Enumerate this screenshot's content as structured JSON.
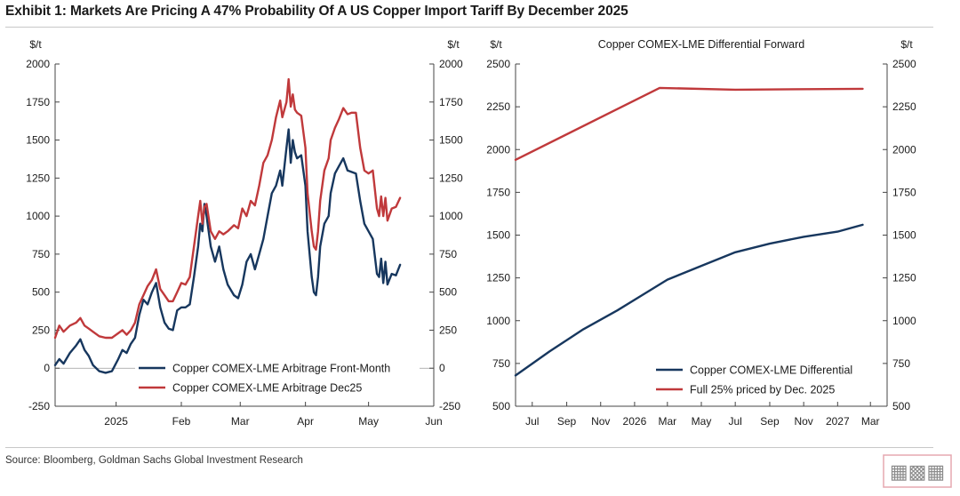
{
  "title": "Exhibit 1: Markets Are Pricing A 47% Probability Of A US Copper Import Tariff By December 2025",
  "source": "Source: Bloomberg, Goldman Sachs Global Investment Research",
  "watermark_text": "老刘编",
  "chart_data": [
    {
      "type": "line",
      "title": "",
      "ylabel_left": "$/t",
      "ylabel_right": "$/t",
      "ylim": [
        -250,
        2000
      ],
      "yticks": [
        -250,
        0,
        250,
        500,
        750,
        1000,
        1250,
        1500,
        1750,
        2000
      ],
      "x_range": [
        "2024-12-03",
        "2025-06-01"
      ],
      "xticks": [
        {
          "date": "2025-01-01",
          "label": "2025"
        },
        {
          "date": "2025-02-01",
          "label": "Feb"
        },
        {
          "date": "2025-03-01",
          "label": "Mar"
        },
        {
          "date": "2025-04-01",
          "label": "Apr"
        },
        {
          "date": "2025-05-01",
          "label": "May"
        },
        {
          "date": "2025-06-01",
          "label": "Jun"
        }
      ],
      "legend_position": "bottom-right",
      "series": [
        {
          "name": "Copper COMEX-LME Arbitrage Front-Month",
          "color": "#17375e",
          "points": [
            [
              "2024-12-03",
              20
            ],
            [
              "2024-12-05",
              60
            ],
            [
              "2024-12-07",
              30
            ],
            [
              "2024-12-10",
              100
            ],
            [
              "2024-12-13",
              150
            ],
            [
              "2024-12-15",
              190
            ],
            [
              "2024-12-17",
              120
            ],
            [
              "2024-12-19",
              80
            ],
            [
              "2024-12-21",
              20
            ],
            [
              "2024-12-24",
              -20
            ],
            [
              "2024-12-27",
              -30
            ],
            [
              "2024-12-30",
              -20
            ],
            [
              "2025-01-02",
              60
            ],
            [
              "2025-01-04",
              120
            ],
            [
              "2025-01-06",
              100
            ],
            [
              "2025-01-08",
              160
            ],
            [
              "2025-01-10",
              200
            ],
            [
              "2025-01-12",
              350
            ],
            [
              "2025-01-14",
              450
            ],
            [
              "2025-01-16",
              420
            ],
            [
              "2025-01-18",
              500
            ],
            [
              "2025-01-20",
              560
            ],
            [
              "2025-01-22",
              400
            ],
            [
              "2025-01-24",
              300
            ],
            [
              "2025-01-26",
              260
            ],
            [
              "2025-01-28",
              250
            ],
            [
              "2025-01-30",
              380
            ],
            [
              "2025-02-01",
              400
            ],
            [
              "2025-02-03",
              400
            ],
            [
              "2025-02-05",
              420
            ],
            [
              "2025-02-07",
              600
            ],
            [
              "2025-02-09",
              800
            ],
            [
              "2025-02-10",
              950
            ],
            [
              "2025-02-11",
              900
            ],
            [
              "2025-02-12",
              1080
            ],
            [
              "2025-02-13",
              1000
            ],
            [
              "2025-02-15",
              800
            ],
            [
              "2025-02-17",
              700
            ],
            [
              "2025-02-19",
              800
            ],
            [
              "2025-02-21",
              650
            ],
            [
              "2025-02-23",
              550
            ],
            [
              "2025-02-26",
              480
            ],
            [
              "2025-02-28",
              460
            ],
            [
              "2025-03-02",
              550
            ],
            [
              "2025-03-04",
              700
            ],
            [
              "2025-03-06",
              750
            ],
            [
              "2025-03-08",
              650
            ],
            [
              "2025-03-10",
              750
            ],
            [
              "2025-03-12",
              850
            ],
            [
              "2025-03-14",
              1000
            ],
            [
              "2025-03-16",
              1150
            ],
            [
              "2025-03-18",
              1200
            ],
            [
              "2025-03-20",
              1300
            ],
            [
              "2025-03-21",
              1200
            ],
            [
              "2025-03-23",
              1450
            ],
            [
              "2025-03-24",
              1570
            ],
            [
              "2025-03-25",
              1350
            ],
            [
              "2025-03-26",
              1500
            ],
            [
              "2025-03-27",
              1420
            ],
            [
              "2025-03-28",
              1380
            ],
            [
              "2025-03-30",
              1400
            ],
            [
              "2025-04-01",
              1200
            ],
            [
              "2025-04-02",
              900
            ],
            [
              "2025-04-04",
              600
            ],
            [
              "2025-04-05",
              500
            ],
            [
              "2025-04-06",
              480
            ],
            [
              "2025-04-07",
              600
            ],
            [
              "2025-04-08",
              800
            ],
            [
              "2025-04-10",
              950
            ],
            [
              "2025-04-12",
              1000
            ],
            [
              "2025-04-13",
              1150
            ],
            [
              "2025-04-15",
              1280
            ],
            [
              "2025-04-17",
              1330
            ],
            [
              "2025-04-19",
              1380
            ],
            [
              "2025-04-21",
              1300
            ],
            [
              "2025-04-23",
              1290
            ],
            [
              "2025-04-25",
              1280
            ],
            [
              "2025-04-27",
              1100
            ],
            [
              "2025-04-29",
              950
            ],
            [
              "2025-05-01",
              900
            ],
            [
              "2025-05-03",
              850
            ],
            [
              "2025-05-05",
              620
            ],
            [
              "2025-05-06",
              600
            ],
            [
              "2025-05-07",
              720
            ],
            [
              "2025-05-08",
              560
            ],
            [
              "2025-05-09",
              700
            ],
            [
              "2025-05-10",
              550
            ],
            [
              "2025-05-12",
              620
            ],
            [
              "2025-05-14",
              610
            ],
            [
              "2025-05-16",
              680
            ]
          ]
        },
        {
          "name": "Copper COMEX-LME Arbitrage Dec25",
          "color": "#c0393b",
          "points": [
            [
              "2024-12-03",
              200
            ],
            [
              "2024-12-05",
              280
            ],
            [
              "2024-12-07",
              240
            ],
            [
              "2024-12-10",
              280
            ],
            [
              "2024-12-13",
              300
            ],
            [
              "2024-12-15",
              330
            ],
            [
              "2024-12-17",
              280
            ],
            [
              "2024-12-19",
              260
            ],
            [
              "2024-12-21",
              240
            ],
            [
              "2024-12-24",
              210
            ],
            [
              "2024-12-27",
              200
            ],
            [
              "2024-12-30",
              200
            ],
            [
              "2025-01-02",
              230
            ],
            [
              "2025-01-04",
              250
            ],
            [
              "2025-01-06",
              220
            ],
            [
              "2025-01-08",
              250
            ],
            [
              "2025-01-10",
              300
            ],
            [
              "2025-01-12",
              420
            ],
            [
              "2025-01-14",
              480
            ],
            [
              "2025-01-16",
              540
            ],
            [
              "2025-01-18",
              580
            ],
            [
              "2025-01-20",
              650
            ],
            [
              "2025-01-22",
              520
            ],
            [
              "2025-01-24",
              480
            ],
            [
              "2025-01-26",
              440
            ],
            [
              "2025-01-28",
              440
            ],
            [
              "2025-01-30",
              500
            ],
            [
              "2025-02-01",
              560
            ],
            [
              "2025-02-03",
              550
            ],
            [
              "2025-02-05",
              600
            ],
            [
              "2025-02-07",
              800
            ],
            [
              "2025-02-09",
              1000
            ],
            [
              "2025-02-10",
              1100
            ],
            [
              "2025-02-11",
              950
            ],
            [
              "2025-02-12",
              1060
            ],
            [
              "2025-02-13",
              1080
            ],
            [
              "2025-02-15",
              900
            ],
            [
              "2025-02-17",
              850
            ],
            [
              "2025-02-19",
              900
            ],
            [
              "2025-02-21",
              880
            ],
            [
              "2025-02-23",
              900
            ],
            [
              "2025-02-26",
              940
            ],
            [
              "2025-02-28",
              920
            ],
            [
              "2025-03-02",
              1050
            ],
            [
              "2025-03-04",
              1000
            ],
            [
              "2025-03-06",
              1100
            ],
            [
              "2025-03-08",
              1070
            ],
            [
              "2025-03-10",
              1200
            ],
            [
              "2025-03-12",
              1350
            ],
            [
              "2025-03-14",
              1400
            ],
            [
              "2025-03-16",
              1500
            ],
            [
              "2025-03-18",
              1650
            ],
            [
              "2025-03-20",
              1760
            ],
            [
              "2025-03-21",
              1650
            ],
            [
              "2025-03-23",
              1750
            ],
            [
              "2025-03-24",
              1900
            ],
            [
              "2025-03-25",
              1720
            ],
            [
              "2025-03-26",
              1800
            ],
            [
              "2025-03-27",
              1700
            ],
            [
              "2025-03-28",
              1680
            ],
            [
              "2025-03-30",
              1660
            ],
            [
              "2025-04-01",
              1450
            ],
            [
              "2025-04-02",
              1150
            ],
            [
              "2025-04-04",
              900
            ],
            [
              "2025-04-05",
              800
            ],
            [
              "2025-04-06",
              780
            ],
            [
              "2025-04-07",
              900
            ],
            [
              "2025-04-08",
              1100
            ],
            [
              "2025-04-10",
              1300
            ],
            [
              "2025-04-12",
              1380
            ],
            [
              "2025-04-13",
              1500
            ],
            [
              "2025-04-15",
              1580
            ],
            [
              "2025-04-17",
              1640
            ],
            [
              "2025-04-19",
              1710
            ],
            [
              "2025-04-21",
              1670
            ],
            [
              "2025-04-23",
              1680
            ],
            [
              "2025-04-25",
              1680
            ],
            [
              "2025-04-27",
              1450
            ],
            [
              "2025-04-29",
              1300
            ],
            [
              "2025-05-01",
              1280
            ],
            [
              "2025-05-03",
              1300
            ],
            [
              "2025-05-05",
              1050
            ],
            [
              "2025-05-06",
              1000
            ],
            [
              "2025-05-07",
              1130
            ],
            [
              "2025-05-08",
              1000
            ],
            [
              "2025-05-09",
              1120
            ],
            [
              "2025-05-10",
              970
            ],
            [
              "2025-05-12",
              1050
            ],
            [
              "2025-05-14",
              1060
            ],
            [
              "2025-05-16",
              1120
            ]
          ]
        }
      ]
    },
    {
      "type": "line",
      "title": "Copper COMEX-LME Differential Forward",
      "ylabel_left": "$/t",
      "ylabel_right": "$/t",
      "ylim": [
        500,
        2500
      ],
      "yticks": [
        500,
        750,
        1000,
        1250,
        1500,
        1750,
        2000,
        2250,
        2500
      ],
      "x_range": [
        "2025-06-01",
        "2027-03-31"
      ],
      "xticks": [
        {
          "date": "2025-07-01",
          "label": "Jul"
        },
        {
          "date": "2025-09-01",
          "label": "Sep"
        },
        {
          "date": "2025-11-01",
          "label": "Nov"
        },
        {
          "date": "2026-01-01",
          "label": "2026"
        },
        {
          "date": "2026-03-01",
          "label": "Mar"
        },
        {
          "date": "2026-05-01",
          "label": "May"
        },
        {
          "date": "2026-07-01",
          "label": "Jul"
        },
        {
          "date": "2026-09-01",
          "label": "Sep"
        },
        {
          "date": "2026-11-01",
          "label": "Nov"
        },
        {
          "date": "2027-01-01",
          "label": "2027"
        },
        {
          "date": "2027-03-01",
          "label": "Mar"
        }
      ],
      "legend_position": "bottom-right",
      "series": [
        {
          "name": "Copper COMEX-LME Differential",
          "color": "#17375e",
          "points": [
            [
              "2025-06-01",
              680
            ],
            [
              "2025-08-01",
              820
            ],
            [
              "2025-10-01",
              950
            ],
            [
              "2025-12-01",
              1060
            ],
            [
              "2026-01-15",
              1150
            ],
            [
              "2026-03-01",
              1240
            ],
            [
              "2026-05-01",
              1320
            ],
            [
              "2026-07-01",
              1400
            ],
            [
              "2026-09-01",
              1450
            ],
            [
              "2026-11-01",
              1490
            ],
            [
              "2027-01-01",
              1520
            ],
            [
              "2027-02-15",
              1560
            ]
          ]
        },
        {
          "name": "Full 25% priced by Dec. 2025",
          "color": "#c0393b",
          "points": [
            [
              "2025-06-01",
              1940
            ],
            [
              "2026-02-15",
              2360
            ],
            [
              "2026-07-01",
              2350
            ],
            [
              "2027-02-15",
              2355
            ]
          ]
        }
      ]
    }
  ]
}
